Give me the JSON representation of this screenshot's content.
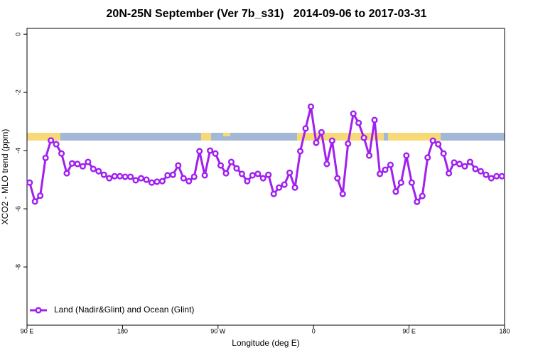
{
  "chart_data": {
    "type": "line",
    "title": "20N-25N September (Ver 7b_s31)   2014-09-06 to 2017-03-31",
    "x_label": "Longitude (deg E)",
    "y_label": "XCO2 - MLO trend (ppm)",
    "xlim": [
      90,
      540
    ],
    "ylim": [
      -10,
      0.2
    ],
    "xticks": [
      {
        "value": 90,
        "label": "90 E"
      },
      180,
      {
        "value": 270,
        "label": "90 W"
      },
      {
        "value": 360,
        "label": "0"
      },
      {
        "value": 450,
        "label": "90 E"
      },
      {
        "value": 540,
        "label": "180"
      }
    ],
    "yticks": [
      0,
      -2,
      -4,
      -6,
      -8
    ],
    "legend": "bottom-left",
    "x": [
      92.5,
      97.5,
      102.5,
      107.5,
      112.5,
      117.5,
      122.5,
      127.5,
      132.5,
      137.5,
      142.5,
      147.5,
      152.5,
      157.5,
      162.5,
      167.5,
      172.5,
      177.5,
      182.5,
      187.5,
      192.5,
      197.5,
      202.5,
      207.5,
      212.5,
      217.5,
      222.5,
      227.5,
      232.5,
      237.5,
      242.5,
      247.5,
      252.5,
      257.5,
      262.5,
      267.5,
      272.5,
      277.5,
      282.5,
      287.5,
      292.5,
      297.5,
      302.5,
      307.5,
      312.5,
      317.5,
      322.5,
      327.5,
      332.5,
      337.5,
      342.5,
      347.5,
      352.5,
      357.5,
      362.5,
      367.5,
      372.5,
      377.5,
      382.5,
      387.5,
      392.5,
      397.5,
      402.5,
      407.5,
      412.5,
      417.5,
      422.5,
      427.5,
      432.5,
      437.5,
      442.5,
      447.5,
      452.5,
      457.5,
      462.5,
      467.5,
      472.5,
      477.5,
      482.5,
      487.5,
      492.5,
      497.5,
      502.5,
      507.5,
      512.5,
      517.5,
      522.5,
      527.5,
      532.5,
      537.5
    ],
    "series": [
      {
        "name": "Land (Nadir&Glint) and Ocean (Glint)",
        "color": "#a020f0",
        "values": [
          -5.1,
          -5.75,
          -5.55,
          -4.25,
          -3.65,
          -3.78,
          -4.1,
          -4.78,
          -4.44,
          -4.46,
          -4.54,
          -4.39,
          -4.63,
          -4.71,
          -4.83,
          -4.95,
          -4.88,
          -4.88,
          -4.9,
          -4.9,
          -5.02,
          -4.95,
          -5.0,
          -5.1,
          -5.07,
          -5.05,
          -4.85,
          -4.83,
          -4.51,
          -4.95,
          -5.05,
          -4.9,
          -4.02,
          -4.85,
          -4.0,
          -4.1,
          -4.51,
          -4.78,
          -4.39,
          -4.61,
          -4.8,
          -5.05,
          -4.85,
          -4.8,
          -4.95,
          -4.83,
          -5.49,
          -5.27,
          -5.17,
          -4.76,
          -5.27,
          -4.02,
          -3.24,
          -2.49,
          -3.73,
          -3.37,
          -4.46,
          -3.66,
          -4.95,
          -5.49,
          -3.76,
          -2.73,
          -3.05,
          -3.56,
          -4.17,
          -2.95,
          -4.8,
          -4.66,
          -4.49,
          -5.41,
          -5.1,
          -4.17,
          -5.1,
          -5.76,
          -5.56,
          -4.24,
          -3.66,
          -3.78,
          -4.1,
          -4.78,
          -4.41,
          -4.46,
          -4.54,
          -4.39,
          -4.63,
          -4.71,
          -4.83,
          -4.95,
          -4.88,
          -4.88
        ]
      }
    ]
  }
}
